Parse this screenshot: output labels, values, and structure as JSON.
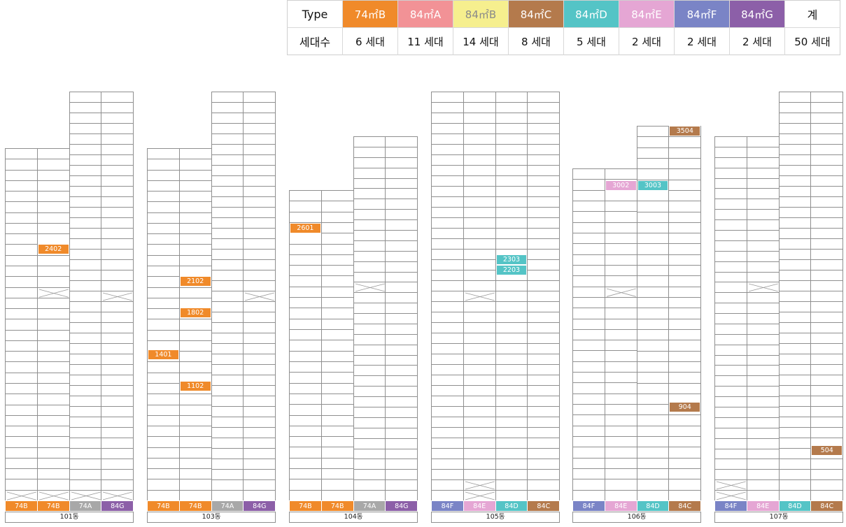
{
  "legend": {
    "header_type": "Type",
    "header_count": "세대수",
    "types": [
      {
        "label": "74㎡B",
        "count": "6 세대",
        "color": "#f08a2a"
      },
      {
        "label": "84㎡A",
        "count": "11 세대",
        "color": "#f29296"
      },
      {
        "label": "84㎡B",
        "count": "14 세대",
        "color": "#f6ef8e"
      },
      {
        "label": "84㎡C",
        "count": "8 세대",
        "color": "#b47a4c"
      },
      {
        "label": "84㎡D",
        "count": "5 세대",
        "color": "#54c4c6"
      },
      {
        "label": "84㎡E",
        "count": "2 세대",
        "color": "#e5a6d4"
      },
      {
        "label": "84㎡F",
        "count": "2 세대",
        "color": "#7a84c6"
      },
      {
        "label": "84㎡G",
        "count": "2 세대",
        "color": "#8c5fa8"
      }
    ],
    "total_label": "계",
    "total_count": "50 세대"
  },
  "foot_colors": {
    "74B": "#f08a2a",
    "74A": "#a8a8a8",
    "84G": "#8c5fa8",
    "84F": "#7a84c6",
    "84E": "#e5a6d4",
    "84D": "#54c4c6",
    "84C": "#b47a4c"
  },
  "buildings": [
    {
      "name": "101동",
      "line_types": [
        "74B",
        "74B",
        "74A",
        "84G"
      ],
      "units": [
        {
          "label": "2402",
          "col": 2,
          "color": "#f08a2a"
        }
      ]
    },
    {
      "name": "103동",
      "line_types": [
        "74B",
        "74B",
        "74A",
        "84G"
      ],
      "units": [
        {
          "label": "2102",
          "col": 2,
          "color": "#f08a2a"
        },
        {
          "label": "1802",
          "col": 2,
          "color": "#f08a2a"
        },
        {
          "label": "1401",
          "col": 1,
          "color": "#f08a2a"
        },
        {
          "label": "1102",
          "col": 2,
          "color": "#f08a2a"
        }
      ]
    },
    {
      "name": "104동",
      "line_types": [
        "74B",
        "74B",
        "74A",
        "84G"
      ],
      "units": [
        {
          "label": "2601",
          "col": 1,
          "color": "#f08a2a"
        }
      ]
    },
    {
      "name": "105동",
      "line_types": [
        "84F",
        "84E",
        "84D",
        "84C"
      ],
      "units": [
        {
          "label": "2303",
          "col": 3,
          "color": "#54c4c6"
        },
        {
          "label": "2203",
          "col": 3,
          "color": "#54c4c6"
        }
      ]
    },
    {
      "name": "106동",
      "line_types": [
        "84F",
        "84E",
        "84D",
        "84C"
      ],
      "units": [
        {
          "label": "3504",
          "col": 4,
          "color": "#b47a4c"
        },
        {
          "label": "3002",
          "col": 2,
          "color": "#e5a6d4"
        },
        {
          "label": "3003",
          "col": 3,
          "color": "#54c4c6"
        },
        {
          "label": "904",
          "col": 4,
          "color": "#b47a4c"
        }
      ]
    },
    {
      "name": "107동",
      "line_types": [
        "84F",
        "84E",
        "84D",
        "84C"
      ],
      "units": [
        {
          "label": "504",
          "col": 4,
          "color": "#b47a4c"
        }
      ]
    }
  ]
}
